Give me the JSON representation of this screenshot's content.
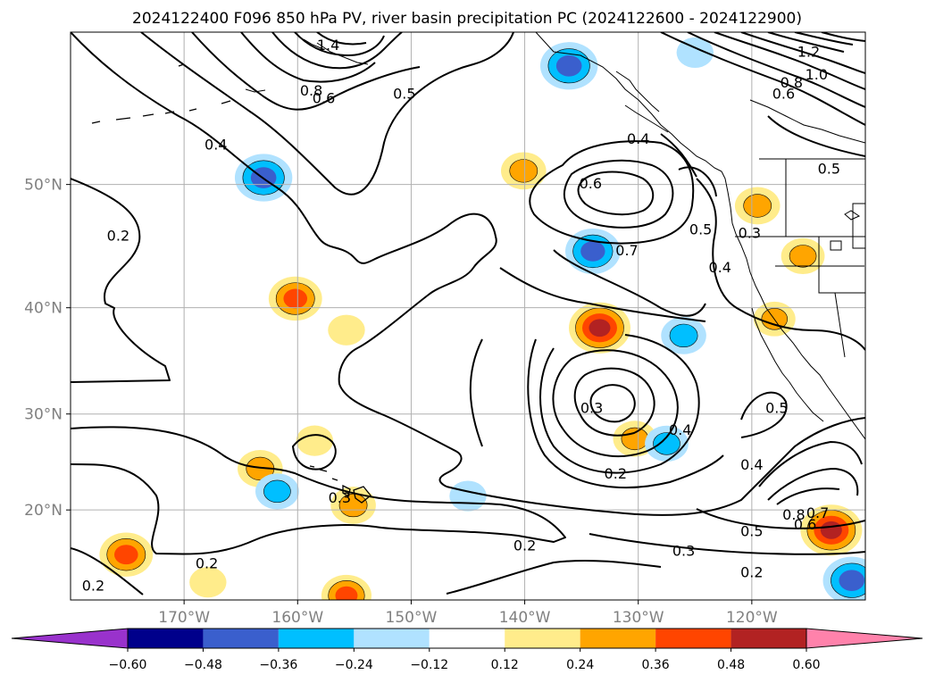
{
  "title": "2024122400 F096 850 hPa PV, river basin precipitation PC (2024122600 - 2024122900)",
  "chart_data": {
    "type": "heatmap",
    "title": "2024122400 F096 850 hPa PV, river basin precipitation PC (2024122600 - 2024122900)",
    "projection": "mercator",
    "lon_range": [
      -180,
      -110
    ],
    "lat_range": [
      10,
      60
    ],
    "grid": true,
    "x_ticks": [
      {
        "lon": -170,
        "label": "170°W"
      },
      {
        "lon": -160,
        "label": "160°W"
      },
      {
        "lon": -150,
        "label": "150°W"
      },
      {
        "lon": -140,
        "label": "140°W"
      },
      {
        "lon": -130,
        "label": "130°W"
      },
      {
        "lon": -120,
        "label": "120°W"
      }
    ],
    "y_ticks": [
      {
        "lat": 20,
        "label": "20°N"
      },
      {
        "lat": 30,
        "label": "30°N"
      },
      {
        "lat": 40,
        "label": "40°N"
      },
      {
        "lat": 50,
        "label": "50°N"
      }
    ],
    "colorbar": {
      "levels": [
        -0.6,
        -0.48,
        -0.36,
        -0.24,
        -0.12,
        0.12,
        0.24,
        0.36,
        0.48,
        0.6
      ],
      "tick_labels": [
        "−0.60",
        "−0.48",
        "−0.36",
        "−0.24",
        "−0.12",
        "0.12",
        "0.24",
        "0.36",
        "0.48",
        "0.60"
      ],
      "colors": [
        "#9932cc",
        "#00008b",
        "#3a5fcd",
        "#00bfff",
        "#b0e2ff",
        "#ffffff",
        "#ffec8b",
        "#ffa500",
        "#ff4500",
        "#b22222",
        "#ff82ab"
      ],
      "extend": "both"
    },
    "pv_contour_labels": [
      {
        "text": "0.2",
        "lon": -175.8,
        "lat": 46.0
      },
      {
        "text": "0.4",
        "lon": -167.2,
        "lat": 52.8
      },
      {
        "text": "0.6",
        "lon": -157.7,
        "lat": 55.9
      },
      {
        "text": "0.5",
        "lon": -150.6,
        "lat": 56.2
      },
      {
        "text": "0.8",
        "lon": -158.8,
        "lat": 56.4
      },
      {
        "text": "1.4",
        "lon": -157.3,
        "lat": 59.2
      },
      {
        "text": "1.2",
        "lon": -115.0,
        "lat": 58.8
      },
      {
        "text": "1.0",
        "lon": -114.3,
        "lat": 57.4
      },
      {
        "text": "0.8",
        "lon": -116.5,
        "lat": 56.9
      },
      {
        "text": "0.6",
        "lon": -117.2,
        "lat": 56.2
      },
      {
        "text": "0.5",
        "lon": -113.2,
        "lat": 51.1
      },
      {
        "text": "0.4",
        "lon": -130.0,
        "lat": 53.2
      },
      {
        "text": "0.6",
        "lon": -134.2,
        "lat": 50.0
      },
      {
        "text": "0.7",
        "lon": -131.0,
        "lat": 44.8
      },
      {
        "text": "0.5",
        "lon": -124.5,
        "lat": 46.5
      },
      {
        "text": "0.4",
        "lon": -122.8,
        "lat": 43.4
      },
      {
        "text": "0.3",
        "lon": -120.2,
        "lat": 46.2
      },
      {
        "text": "0.5",
        "lon": -117.8,
        "lat": 30.5
      },
      {
        "text": "0.3",
        "lon": -134.1,
        "lat": 30.5
      },
      {
        "text": "0.4",
        "lon": -126.3,
        "lat": 28.3
      },
      {
        "text": "0.2",
        "lon": -132.0,
        "lat": 23.8
      },
      {
        "text": "0.4",
        "lon": -120.0,
        "lat": 24.7
      },
      {
        "text": "0.3",
        "lon": -156.3,
        "lat": 21.2
      },
      {
        "text": "0.8",
        "lon": -116.3,
        "lat": 19.4
      },
      {
        "text": "0.7",
        "lon": -114.2,
        "lat": 19.6
      },
      {
        "text": "0.6",
        "lon": -115.3,
        "lat": 18.3
      },
      {
        "text": "0.5",
        "lon": -120.0,
        "lat": 17.6
      },
      {
        "text": "0.3",
        "lon": -126.0,
        "lat": 15.4
      },
      {
        "text": "0.2",
        "lon": -140.0,
        "lat": 16.0
      },
      {
        "text": "0.2",
        "lon": -120.0,
        "lat": 13.0
      },
      {
        "text": "0.2",
        "lon": -178.0,
        "lat": 11.5
      },
      {
        "text": "0.2",
        "lon": -168.0,
        "lat": 14.0
      }
    ],
    "precip_pc_regions": [
      {
        "lon": -160.2,
        "lat": 40.8,
        "value": 0.4
      },
      {
        "lon": -133.4,
        "lat": 38.2,
        "value": 0.5
      },
      {
        "lon": -140.1,
        "lat": 51.0,
        "value": 0.3
      },
      {
        "lon": -130.3,
        "lat": 27.5,
        "value": 0.28
      },
      {
        "lon": -119.5,
        "lat": 48.4,
        "value": 0.3
      },
      {
        "lon": -115.5,
        "lat": 44.4,
        "value": 0.28
      },
      {
        "lon": -118.0,
        "lat": 39.0,
        "value": 0.26
      },
      {
        "lon": -163.3,
        "lat": 24.4,
        "value": 0.3
      },
      {
        "lon": -155.1,
        "lat": 20.5,
        "value": 0.3
      },
      {
        "lon": -175.1,
        "lat": 15.1,
        "value": 0.4
      },
      {
        "lon": -113.0,
        "lat": 17.8,
        "value": 0.5
      },
      {
        "lon": -155.7,
        "lat": 10.5,
        "value": 0.36
      },
      {
        "lon": -167.9,
        "lat": 12.0,
        "value": 0.2
      },
      {
        "lon": -155.7,
        "lat": 38.0,
        "value": 0.2
      },
      {
        "lon": -158.5,
        "lat": 27.3,
        "value": 0.2
      },
      {
        "lon": -163.0,
        "lat": 50.5,
        "value": -0.45
      },
      {
        "lon": -136.1,
        "lat": 58.0,
        "value": -0.45
      },
      {
        "lon": -134.0,
        "lat": 44.8,
        "value": -0.42
      },
      {
        "lon": -126.0,
        "lat": 37.5,
        "value": -0.3
      },
      {
        "lon": -127.5,
        "lat": 27.0,
        "value": -0.28
      },
      {
        "lon": -161.8,
        "lat": 22.0,
        "value": -0.28
      },
      {
        "lon": -145.0,
        "lat": 21.5,
        "value": -0.2
      },
      {
        "lon": -111.2,
        "lat": 12.2,
        "value": -0.45
      },
      {
        "lon": -125.0,
        "lat": 58.8,
        "value": -0.2
      }
    ]
  }
}
